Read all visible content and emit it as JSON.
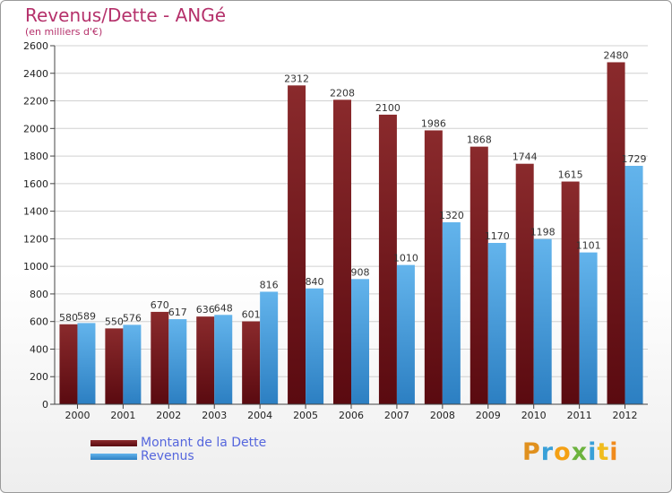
{
  "title": "Revenus/Dette - ANGé",
  "subtitle": "(en milliers d'€)",
  "colors": {
    "debt_top": "#8a2a2c",
    "debt_bottom": "#5a0a10",
    "revenue_top": "#63b4ec",
    "revenue_bottom": "#2c7fc2",
    "axis": "#444444",
    "grid": "#d0d0d0",
    "title": "#b5316b",
    "legend_text": "#5566dd"
  },
  "logo": {
    "letters": [
      "P",
      "r",
      "o",
      "x",
      "i",
      "t",
      "i"
    ],
    "colors": [
      "#e0901e",
      "#39a0d8",
      "#f4a014",
      "#6cb33e",
      "#39a0d8",
      "#f0bc1e",
      "#f08a1c"
    ]
  },
  "chart_data": {
    "type": "bar",
    "categories": [
      "2000",
      "2001",
      "2002",
      "2003",
      "2004",
      "2005",
      "2006",
      "2007",
      "2008",
      "2009",
      "2010",
      "2011",
      "2012"
    ],
    "series": [
      {
        "name": "Montant de la Dette",
        "values": [
          580,
          550,
          670,
          636,
          601,
          2312,
          2208,
          2100,
          1986,
          1868,
          1744,
          1615,
          2480
        ]
      },
      {
        "name": "Revenus",
        "values": [
          589,
          576,
          617,
          648,
          816,
          840,
          908,
          1010,
          1320,
          1170,
          1198,
          1101,
          1729
        ]
      }
    ],
    "ylim": [
      0,
      2600
    ],
    "yticks": [
      0,
      200,
      400,
      600,
      800,
      1000,
      1200,
      1400,
      1600,
      1800,
      2000,
      2200,
      2400,
      2600
    ],
    "grid": true,
    "legend_position": "bottom-left"
  }
}
